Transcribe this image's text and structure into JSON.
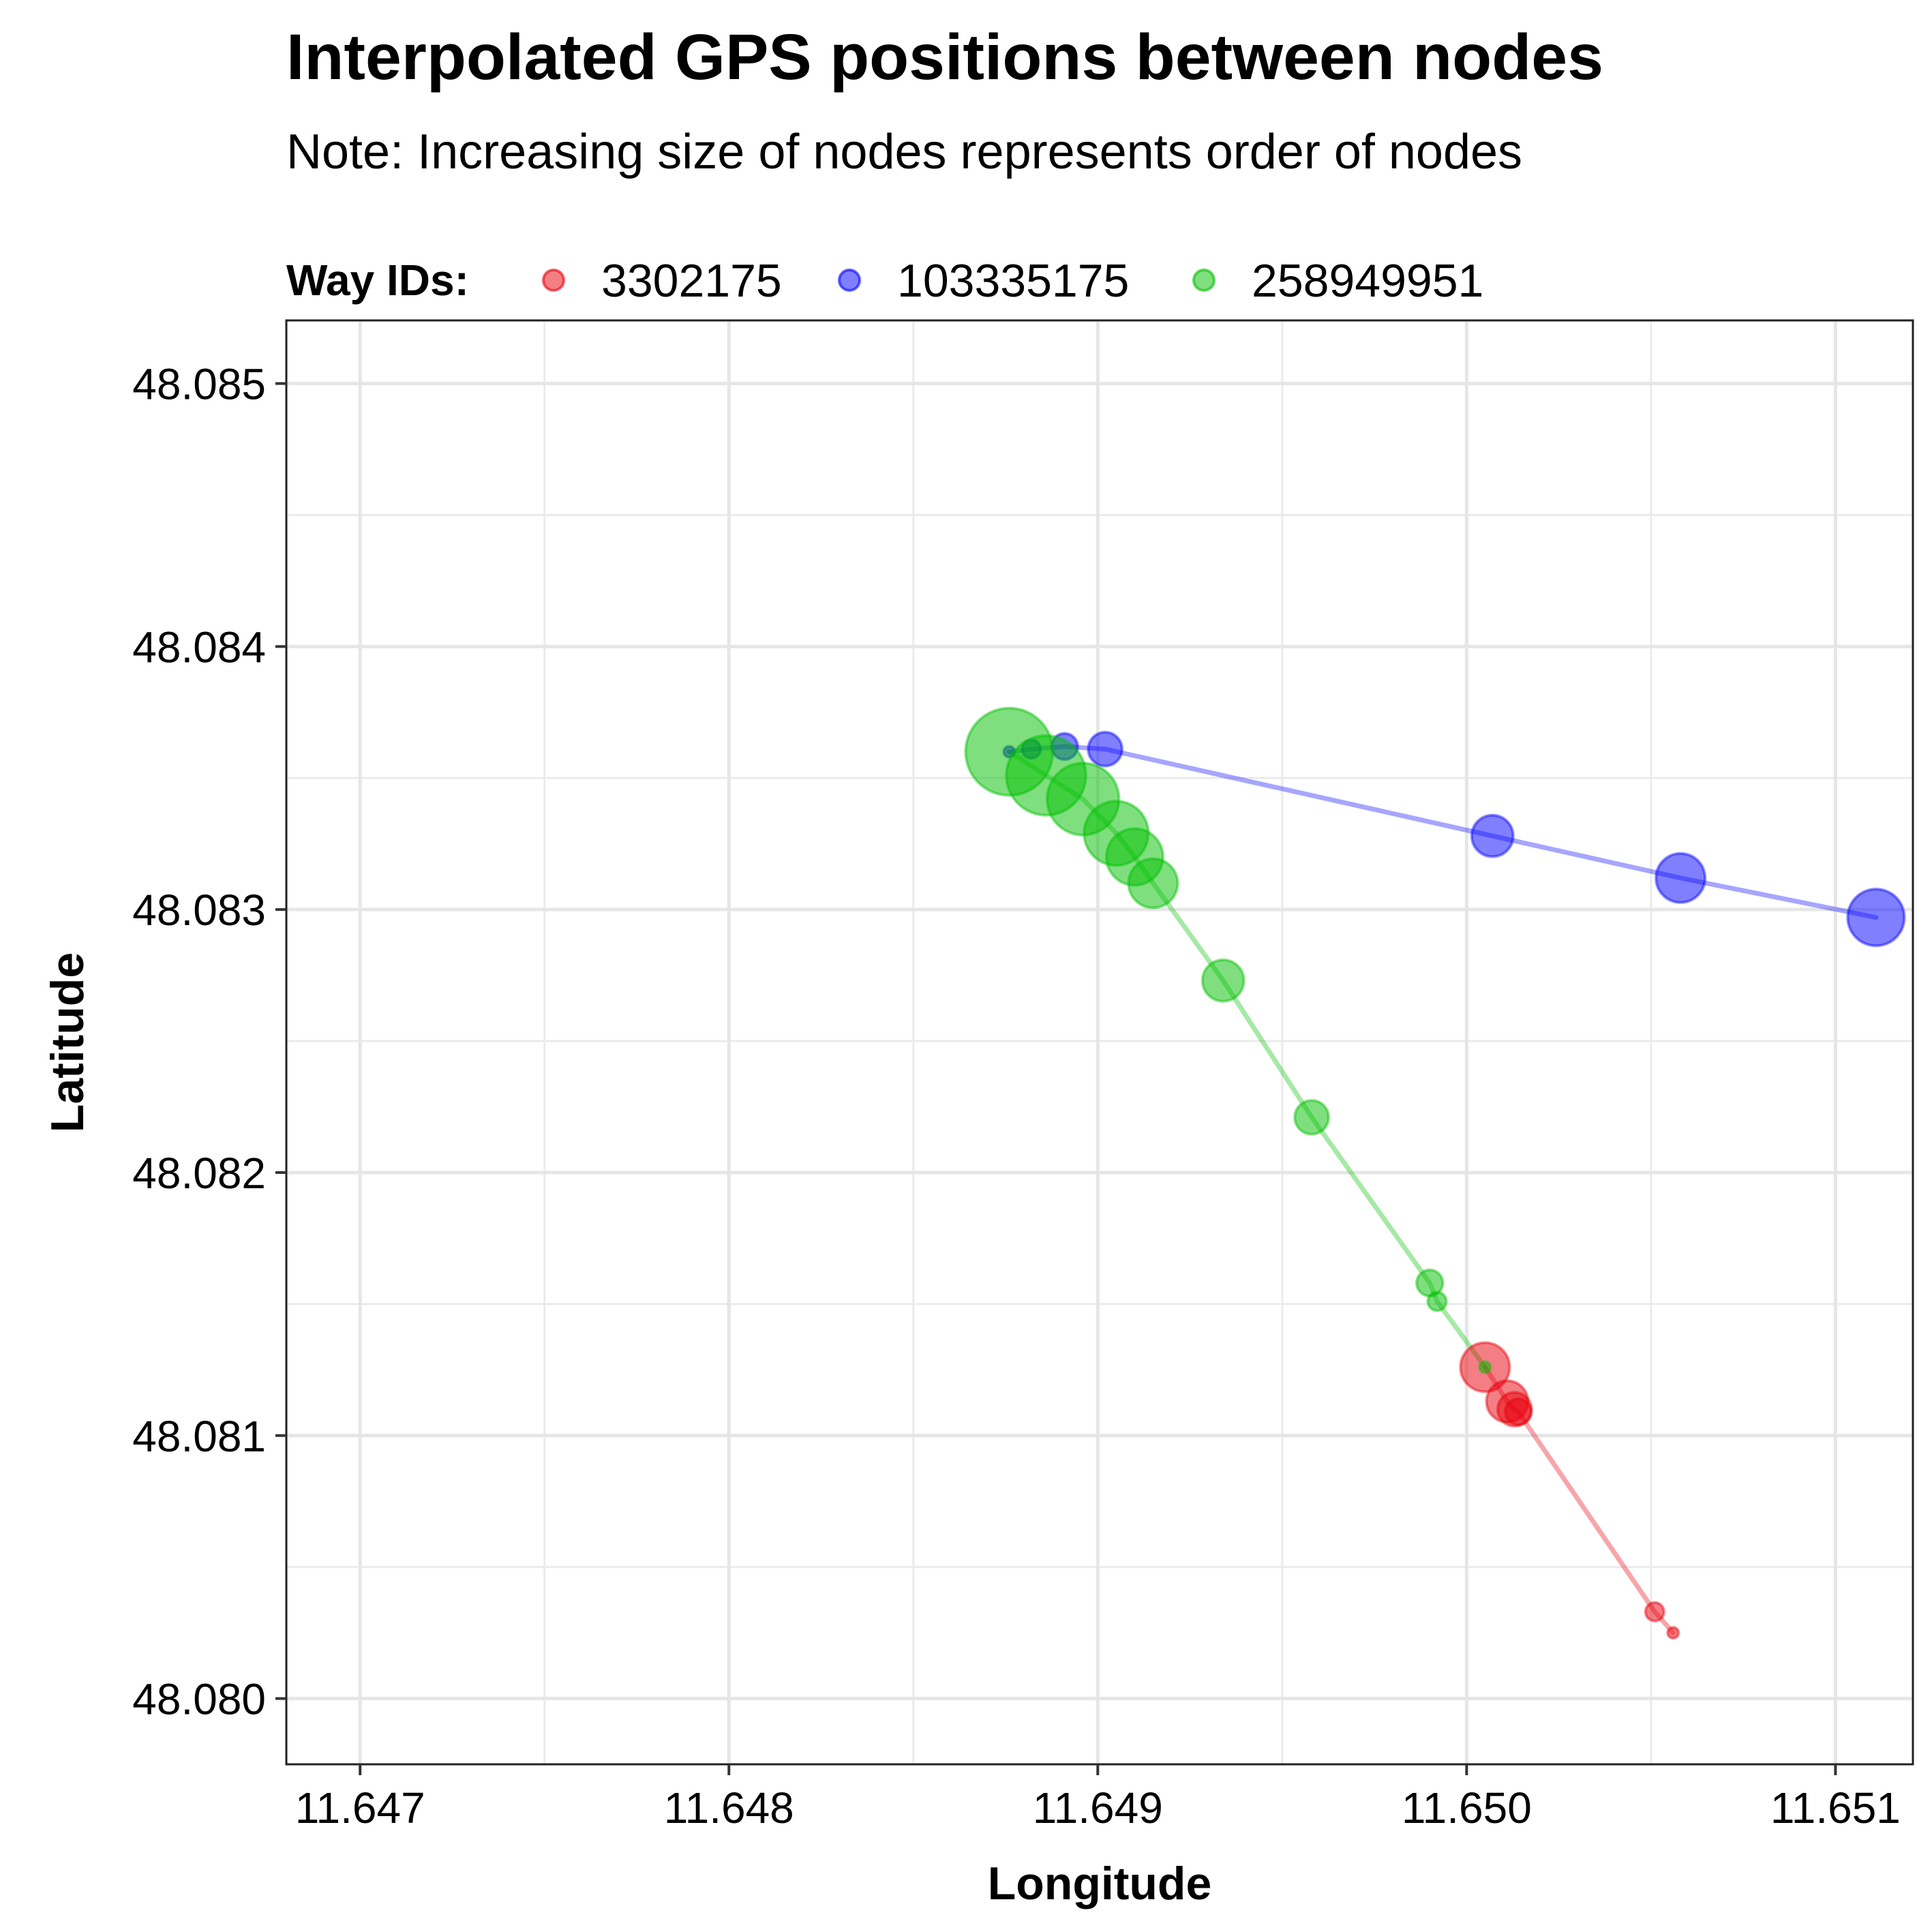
{
  "chart_data": {
    "type": "scatter",
    "title": "Interpolated GPS positions between nodes",
    "subtitle": "Note: Increasing size of nodes represents order of nodes",
    "xlabel": "Longitude",
    "ylabel": "Latitude",
    "xlim": [
      11.6468,
      11.65121
    ],
    "ylim": [
      48.07975,
      48.08524
    ],
    "x_ticks": [
      "11.647",
      "11.648",
      "11.649",
      "11.650",
      "11.651"
    ],
    "y_ticks": [
      "48.080",
      "48.081",
      "48.082",
      "48.083",
      "48.084",
      "48.085"
    ],
    "grid": true,
    "legend": {
      "title": "Way IDs:",
      "position": "top-left"
    },
    "series": [
      {
        "name": "3302175",
        "color": "#e8000b",
        "points": [
          {
            "x": 11.65056,
            "y": 48.08025,
            "size": 1
          },
          {
            "x": 11.65051,
            "y": 48.08033,
            "size": 2
          },
          {
            "x": 11.65014,
            "y": 48.08109,
            "size": 3
          },
          {
            "x": 11.65013,
            "y": 48.0811,
            "size": 4
          },
          {
            "x": 11.65011,
            "y": 48.08113,
            "size": 5
          },
          {
            "x": 11.65005,
            "y": 48.08126,
            "size": 6
          }
        ]
      },
      {
        "name": "103335175",
        "color": "#0000ff",
        "points": [
          {
            "x": 11.64876,
            "y": 48.0836,
            "size": 1
          },
          {
            "x": 11.64882,
            "y": 48.08361,
            "size": 2
          },
          {
            "x": 11.64891,
            "y": 48.08362,
            "size": 3
          },
          {
            "x": 11.64902,
            "y": 48.08361,
            "size": 4
          },
          {
            "x": 11.65007,
            "y": 48.08328,
            "size": 5
          },
          {
            "x": 11.65058,
            "y": 48.08312,
            "size": 6
          },
          {
            "x": 11.65111,
            "y": 48.08297,
            "size": 7
          }
        ]
      },
      {
        "name": "258949951",
        "color": "#00c000",
        "points": [
          {
            "x": 11.65005,
            "y": 48.08126,
            "size": 1
          },
          {
            "x": 11.64992,
            "y": 48.08151,
            "size": 2
          },
          {
            "x": 11.6499,
            "y": 48.08158,
            "size": 3
          },
          {
            "x": 11.64958,
            "y": 48.08221,
            "size": 4
          },
          {
            "x": 11.64934,
            "y": 48.08273,
            "size": 5
          },
          {
            "x": 11.64915,
            "y": 48.0831,
            "size": 6
          },
          {
            "x": 11.6491,
            "y": 48.0832,
            "size": 7
          },
          {
            "x": 11.64905,
            "y": 48.08329,
            "size": 8
          },
          {
            "x": 11.64896,
            "y": 48.08342,
            "size": 9
          },
          {
            "x": 11.64886,
            "y": 48.08351,
            "size": 10
          },
          {
            "x": 11.64876,
            "y": 48.0836,
            "size": 11
          }
        ]
      }
    ]
  }
}
